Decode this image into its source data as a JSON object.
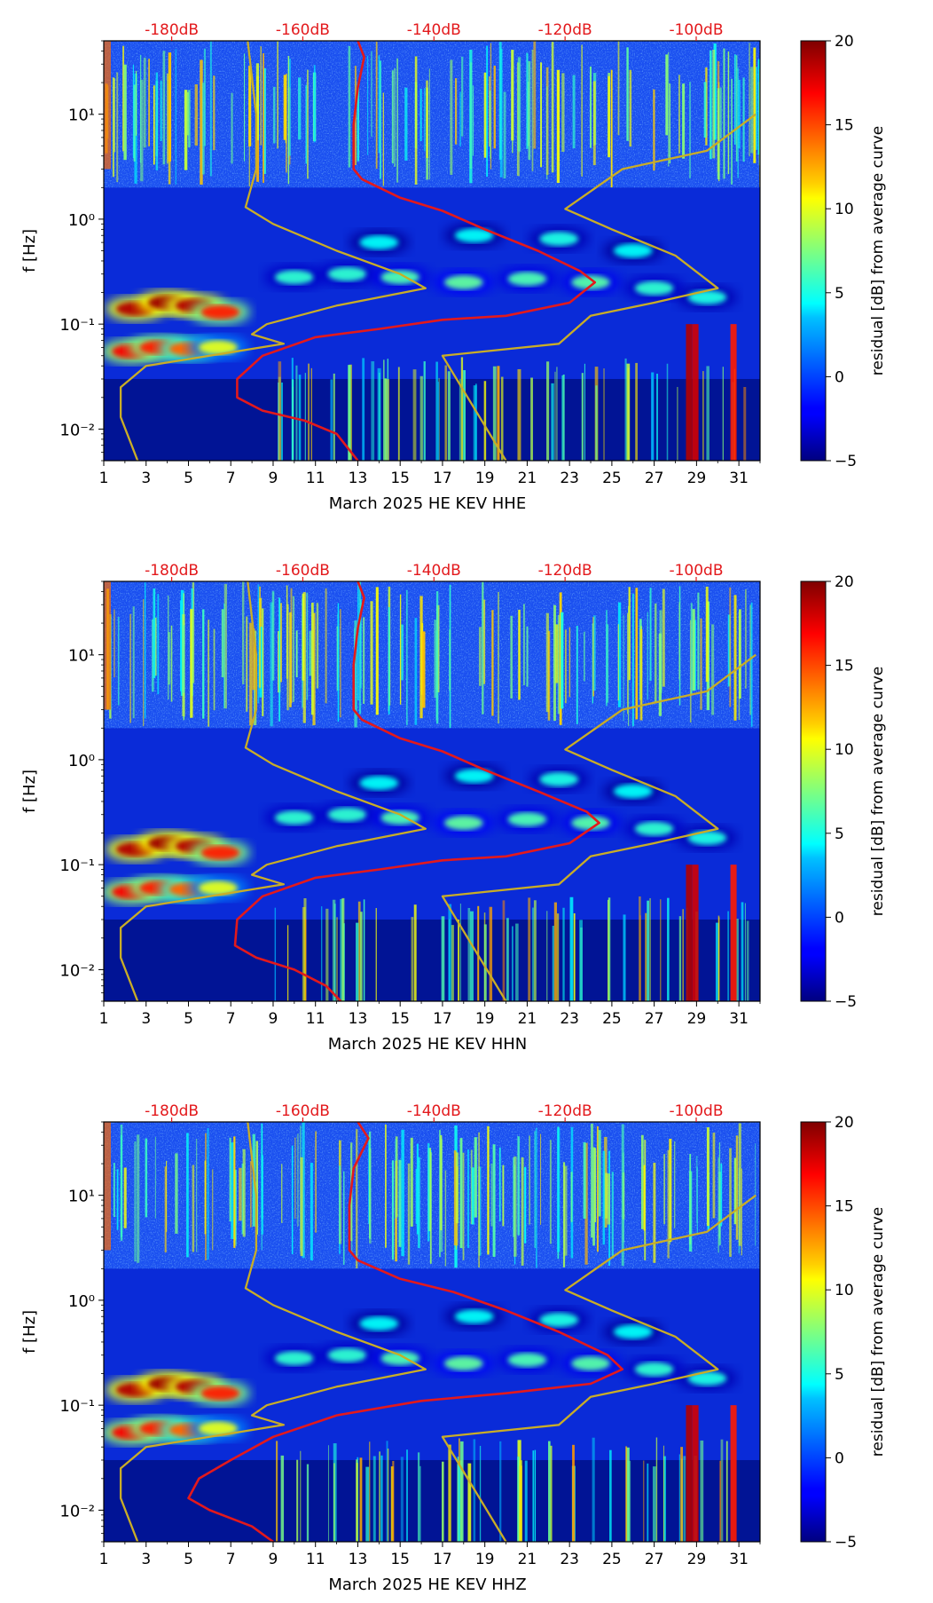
{
  "colors": {
    "power_curve": "#e3191c",
    "noise_model": "#c9ad27",
    "top_label": "#e3191c",
    "text": "#000000"
  },
  "chart_data": [
    {
      "type": "heatmap",
      "title": "",
      "xlabel": "March 2025 HE KEV  HHE",
      "ylabel": "f [Hz]",
      "x_ticks": [
        "1",
        "3",
        "5",
        "7",
        "9",
        "11",
        "13",
        "15",
        "17",
        "19",
        "21",
        "23",
        "25",
        "27",
        "29",
        "31"
      ],
      "y_ticks": [
        "10⁻²",
        "10⁻¹",
        "10⁰",
        "10¹"
      ],
      "xlim": [
        1,
        32
      ],
      "ylim_hz": [
        0.005,
        50
      ],
      "top_ticks": [
        "-180dB",
        "-160dB",
        "-140dB",
        "-120dB",
        "-100dB"
      ],
      "colorbar": {
        "label": "residual [dB] from average curve",
        "ticks": [
          "20",
          "15",
          "10",
          "5",
          "0",
          "−5"
        ],
        "range": [
          -5,
          20
        ]
      },
      "series": [
        {
          "name": "power_curve_day",
          "points": [
            [
              13,
              50
            ],
            [
              13.3,
              35
            ],
            [
              13,
              18
            ],
            [
              12.8,
              8
            ],
            [
              12.8,
              4
            ],
            [
              12.8,
              3
            ],
            [
              13.2,
              2.4
            ],
            [
              15,
              1.6
            ],
            [
              17,
              1.2
            ],
            [
              19,
              0.8
            ],
            [
              21.5,
              0.5
            ],
            [
              23.5,
              0.32
            ],
            [
              24.2,
              0.25
            ],
            [
              23,
              0.16
            ],
            [
              20,
              0.12
            ],
            [
              17,
              0.11
            ],
            [
              14,
              0.09
            ],
            [
              11,
              0.075
            ],
            [
              8.5,
              0.05
            ],
            [
              7.3,
              0.03
            ],
            [
              7.3,
              0.02
            ],
            [
              8.5,
              0.015
            ],
            [
              10.5,
              0.012
            ],
            [
              12,
              0.009
            ],
            [
              13,
              0.005
            ]
          ]
        },
        {
          "name": "noise_model_high",
          "points": [
            [
              7.8,
              50
            ],
            [
              8.2,
              10
            ],
            [
              8.2,
              3
            ],
            [
              7.7,
              1.3
            ],
            [
              9,
              0.9
            ],
            [
              12,
              0.5
            ],
            [
              15,
              0.3
            ],
            [
              16.2,
              0.22
            ],
            [
              12,
              0.15
            ],
            [
              8.7,
              0.1
            ],
            [
              8,
              0.08
            ],
            [
              9.5,
              0.065
            ],
            [
              6,
              0.05
            ],
            [
              3,
              0.04
            ],
            [
              1.8,
              0.025
            ],
            [
              1.8,
              0.013
            ],
            [
              2.6,
              0.005
            ]
          ]
        },
        {
          "name": "noise_model_low",
          "points": [
            [
              31.8,
              10
            ],
            [
              29.5,
              4.5
            ],
            [
              25.5,
              3
            ],
            [
              22.8,
              1.25
            ],
            [
              25,
              0.8
            ],
            [
              28,
              0.45
            ],
            [
              30,
              0.22
            ],
            [
              27,
              0.16
            ],
            [
              24,
              0.12
            ],
            [
              22.5,
              0.065
            ],
            [
              19,
              0.055
            ],
            [
              17,
              0.05
            ],
            [
              20,
              0.005
            ]
          ]
        }
      ]
    },
    {
      "type": "heatmap",
      "title": "",
      "xlabel": "March 2025 HE KEV  HHN",
      "ylabel": "f [Hz]",
      "x_ticks": [
        "1",
        "3",
        "5",
        "7",
        "9",
        "11",
        "13",
        "15",
        "17",
        "19",
        "21",
        "23",
        "25",
        "27",
        "29",
        "31"
      ],
      "y_ticks": [
        "10⁻²",
        "10⁻¹",
        "10⁰",
        "10¹"
      ],
      "xlim": [
        1,
        32
      ],
      "ylim_hz": [
        0.005,
        50
      ],
      "top_ticks": [
        "-180dB",
        "-160dB",
        "-140dB",
        "-120dB",
        "-100dB"
      ],
      "colorbar": {
        "label": "residual [dB] from average curve",
        "ticks": [
          "20",
          "15",
          "10",
          "5",
          "0",
          "−5"
        ],
        "range": [
          -5,
          20
        ]
      },
      "series": [
        {
          "name": "power_curve_day",
          "points": [
            [
              13,
              50
            ],
            [
              13.3,
              35
            ],
            [
              13,
              18
            ],
            [
              12.8,
              8
            ],
            [
              12.8,
              4
            ],
            [
              12.8,
              3
            ],
            [
              13.2,
              2.4
            ],
            [
              15,
              1.6
            ],
            [
              17,
              1.2
            ],
            [
              19,
              0.8
            ],
            [
              21.5,
              0.5
            ],
            [
              23.8,
              0.32
            ],
            [
              24.4,
              0.25
            ],
            [
              23,
              0.16
            ],
            [
              20,
              0.12
            ],
            [
              17,
              0.11
            ],
            [
              14,
              0.09
            ],
            [
              11,
              0.075
            ],
            [
              8.5,
              0.05
            ],
            [
              7.3,
              0.03
            ],
            [
              7.2,
              0.017
            ],
            [
              8.2,
              0.013
            ],
            [
              10,
              0.01
            ],
            [
              11.5,
              0.007
            ],
            [
              12.2,
              0.005
            ]
          ]
        },
        {
          "name": "noise_model_high",
          "points": [
            [
              7.8,
              50
            ],
            [
              8.2,
              10
            ],
            [
              8.2,
              3
            ],
            [
              7.7,
              1.3
            ],
            [
              9,
              0.9
            ],
            [
              12,
              0.5
            ],
            [
              15,
              0.3
            ],
            [
              16.2,
              0.22
            ],
            [
              12,
              0.15
            ],
            [
              8.7,
              0.1
            ],
            [
              8,
              0.08
            ],
            [
              9.5,
              0.065
            ],
            [
              6,
              0.05
            ],
            [
              3,
              0.04
            ],
            [
              1.8,
              0.025
            ],
            [
              1.8,
              0.013
            ],
            [
              2.6,
              0.005
            ]
          ]
        },
        {
          "name": "noise_model_low",
          "points": [
            [
              31.8,
              10
            ],
            [
              29.5,
              4.5
            ],
            [
              25.5,
              3
            ],
            [
              22.8,
              1.25
            ],
            [
              25,
              0.8
            ],
            [
              28,
              0.45
            ],
            [
              30,
              0.22
            ],
            [
              27,
              0.16
            ],
            [
              24,
              0.12
            ],
            [
              22.5,
              0.065
            ],
            [
              19,
              0.055
            ],
            [
              17,
              0.05
            ],
            [
              20,
              0.005
            ]
          ]
        }
      ]
    },
    {
      "type": "heatmap",
      "title": "",
      "xlabel": "March 2025 HE KEV  HHZ",
      "ylabel": "f [Hz]",
      "x_ticks": [
        "1",
        "3",
        "5",
        "7",
        "9",
        "11",
        "13",
        "15",
        "17",
        "19",
        "21",
        "23",
        "25",
        "27",
        "29",
        "31"
      ],
      "y_ticks": [
        "10⁻²",
        "10⁻¹",
        "10⁰",
        "10¹"
      ],
      "xlim": [
        1,
        32
      ],
      "ylim_hz": [
        0.005,
        50
      ],
      "top_ticks": [
        "-180dB",
        "-160dB",
        "-140dB",
        "-120dB",
        "-100dB"
      ],
      "colorbar": {
        "label": "residual [dB] from average curve",
        "ticks": [
          "20",
          "15",
          "10",
          "5",
          "0",
          "−5"
        ],
        "range": [
          -5,
          20
        ]
      },
      "series": [
        {
          "name": "power_curve_day",
          "points": [
            [
              13,
              50
            ],
            [
              13.5,
              35
            ],
            [
              12.8,
              18
            ],
            [
              12.6,
              8
            ],
            [
              12.6,
              4
            ],
            [
              12.6,
              3
            ],
            [
              13,
              2.4
            ],
            [
              15,
              1.6
            ],
            [
              17.5,
              1.2
            ],
            [
              20,
              0.8
            ],
            [
              22.5,
              0.5
            ],
            [
              24.8,
              0.3
            ],
            [
              25.5,
              0.22
            ],
            [
              24,
              0.16
            ],
            [
              20,
              0.13
            ],
            [
              16,
              0.11
            ],
            [
              12,
              0.08
            ],
            [
              9,
              0.05
            ],
            [
              7,
              0.03
            ],
            [
              5.5,
              0.02
            ],
            [
              5,
              0.013
            ],
            [
              6,
              0.01
            ],
            [
              8,
              0.007
            ],
            [
              9,
              0.005
            ]
          ]
        },
        {
          "name": "noise_model_high",
          "points": [
            [
              7.8,
              50
            ],
            [
              8.2,
              10
            ],
            [
              8.2,
              3
            ],
            [
              7.7,
              1.3
            ],
            [
              9,
              0.9
            ],
            [
              12,
              0.5
            ],
            [
              15,
              0.3
            ],
            [
              16.2,
              0.22
            ],
            [
              12,
              0.15
            ],
            [
              8.7,
              0.1
            ],
            [
              8,
              0.08
            ],
            [
              9.5,
              0.065
            ],
            [
              6,
              0.05
            ],
            [
              3,
              0.04
            ],
            [
              1.8,
              0.025
            ],
            [
              1.8,
              0.013
            ],
            [
              2.6,
              0.005
            ]
          ]
        },
        {
          "name": "noise_model_low",
          "points": [
            [
              31.8,
              10
            ],
            [
              29.5,
              4.5
            ],
            [
              25.5,
              3
            ],
            [
              22.8,
              1.25
            ],
            [
              25,
              0.8
            ],
            [
              28,
              0.45
            ],
            [
              30,
              0.22
            ],
            [
              27,
              0.16
            ],
            [
              24,
              0.12
            ],
            [
              22.5,
              0.065
            ],
            [
              19,
              0.055
            ],
            [
              17,
              0.05
            ],
            [
              20,
              0.005
            ]
          ]
        }
      ]
    }
  ]
}
